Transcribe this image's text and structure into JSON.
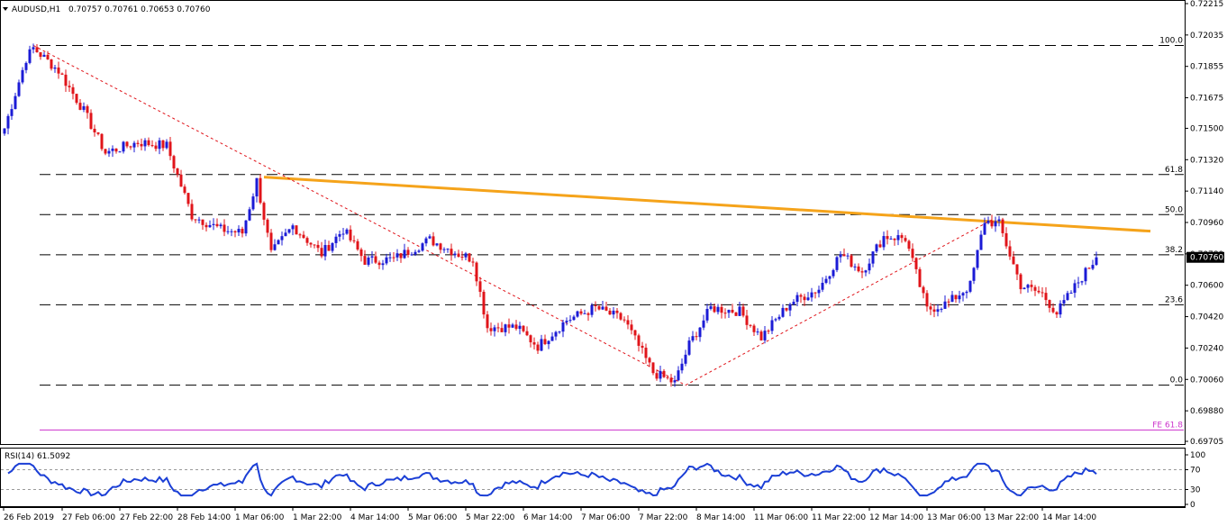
{
  "header": {
    "symbol": "AUDUSD,H1",
    "ohlc": "0.70757 0.70761 0.70653 0.70760"
  },
  "price_axis": {
    "ticks": [
      "0.72215",
      "0.72035",
      "0.71855",
      "0.71675",
      "0.71500",
      "0.71320",
      "0.71140",
      "0.70960",
      "0.70780",
      "0.70600",
      "0.70420",
      "0.70240",
      "0.70060",
      "0.69880",
      "0.69705"
    ],
    "current_price": "0.70760"
  },
  "fib_levels": [
    {
      "label": "100.0",
      "price": 0.71975
    },
    {
      "label": "61.8",
      "price": 0.71235
    },
    {
      "label": "50.0",
      "price": 0.71005
    },
    {
      "label": "38.2",
      "price": 0.70775
    },
    {
      "label": "23.6",
      "price": 0.70488
    },
    {
      "label": "0.0",
      "price": 0.70027
    }
  ],
  "fe_level": {
    "label": "FE 61.8",
    "price": 0.6977
  },
  "rsi": {
    "label": "RSI(14) 61.5092",
    "levels": [
      "70",
      "30"
    ],
    "scale_labels": [
      "100",
      "70",
      "30",
      "0"
    ]
  },
  "time_axis": [
    "26 Feb 2019",
    "27 Feb 06:00",
    "27 Feb 22:00",
    "28 Feb 14:00",
    "1 Mar 06:00",
    "1 Mar 22:00",
    "4 Mar 14:00",
    "5 Mar 06:00",
    "5 Mar 22:00",
    "6 Mar 14:00",
    "7 Mar 06:00",
    "7 Mar 22:00",
    "8 Mar 14:00",
    "11 Mar 06:00",
    "11 Mar 22:00",
    "12 Mar 14:00",
    "13 Mar 06:00",
    "13 Mar 22:00",
    "14 Mar 14:00"
  ],
  "colors": {
    "bull": "#1b1bd6",
    "bear": "#e0141a",
    "trendline": "#f5a31a",
    "fib": "#000000",
    "fe": "#cc33cc",
    "rsi": "#1b3fd6",
    "price_tag_bg": "#000000"
  },
  "chart_data": {
    "type": "candlestick",
    "instrument": "AUDUSD",
    "timeframe": "H1",
    "ylim": [
      0.69705,
      0.72215
    ],
    "path_points": [
      {
        "i": 0,
        "price": 0.715
      },
      {
        "i": 6,
        "price": 0.719
      },
      {
        "i": 8,
        "price": 0.7196
      },
      {
        "i": 15,
        "price": 0.7183
      },
      {
        "i": 22,
        "price": 0.716
      },
      {
        "i": 28,
        "price": 0.7136
      },
      {
        "i": 37,
        "price": 0.7142
      },
      {
        "i": 45,
        "price": 0.714
      },
      {
        "i": 52,
        "price": 0.71
      },
      {
        "i": 60,
        "price": 0.7092
      },
      {
        "i": 66,
        "price": 0.709
      },
      {
        "i": 70,
        "price": 0.712
      },
      {
        "i": 74,
        "price": 0.7078
      },
      {
        "i": 80,
        "price": 0.7094
      },
      {
        "i": 88,
        "price": 0.7078
      },
      {
        "i": 94,
        "price": 0.7092
      },
      {
        "i": 100,
        "price": 0.7074
      },
      {
        "i": 108,
        "price": 0.7075
      },
      {
        "i": 118,
        "price": 0.7086
      },
      {
        "i": 126,
        "price": 0.7078
      },
      {
        "i": 130,
        "price": 0.7075
      },
      {
        "i": 134,
        "price": 0.7036
      },
      {
        "i": 142,
        "price": 0.7036
      },
      {
        "i": 148,
        "price": 0.7025
      },
      {
        "i": 156,
        "price": 0.704
      },
      {
        "i": 164,
        "price": 0.7047
      },
      {
        "i": 172,
        "price": 0.704
      },
      {
        "i": 180,
        "price": 0.701
      },
      {
        "i": 186,
        "price": 0.7004
      },
      {
        "i": 190,
        "price": 0.7026
      },
      {
        "i": 196,
        "price": 0.7047
      },
      {
        "i": 204,
        "price": 0.7045
      },
      {
        "i": 210,
        "price": 0.703
      },
      {
        "i": 218,
        "price": 0.705
      },
      {
        "i": 226,
        "price": 0.7058
      },
      {
        "i": 232,
        "price": 0.7078
      },
      {
        "i": 238,
        "price": 0.7068
      },
      {
        "i": 244,
        "price": 0.7088
      },
      {
        "i": 250,
        "price": 0.7087
      },
      {
        "i": 256,
        "price": 0.7046
      },
      {
        "i": 262,
        "price": 0.705
      },
      {
        "i": 268,
        "price": 0.706
      },
      {
        "i": 272,
        "price": 0.7097
      },
      {
        "i": 276,
        "price": 0.7095
      },
      {
        "i": 282,
        "price": 0.706
      },
      {
        "i": 288,
        "price": 0.7055
      },
      {
        "i": 292,
        "price": 0.7044
      },
      {
        "i": 298,
        "price": 0.7062
      },
      {
        "i": 303,
        "price": 0.7076
      }
    ],
    "rsi_series": {
      "name": "RSI(14)",
      "last": 61.5092,
      "levels": [
        70,
        30
      ],
      "ylim": [
        0,
        100
      ]
    },
    "fibonacci_retracement": [
      {
        "level": "100.0",
        "price": 0.71975
      },
      {
        "level": "61.8",
        "price": 0.71235
      },
      {
        "level": "50.0",
        "price": 0.71005
      },
      {
        "level": "38.2",
        "price": 0.70775
      },
      {
        "level": "23.6",
        "price": 0.70488
      },
      {
        "level": "0.0",
        "price": 0.70027
      }
    ],
    "fibonacci_expansion": {
      "level": "FE 61.8",
      "price": 0.6977
    },
    "trendlines": [
      {
        "style": "orange solid resistance",
        "from": {
          "i": 72,
          "price": 0.7122
        },
        "to": {
          "i": 318,
          "price": 0.7091
        }
      },
      {
        "style": "red dotted",
        "from": {
          "i": 8,
          "price": 0.71975
        },
        "to": {
          "i": 189,
          "price": 0.70027
        }
      },
      {
        "style": "red dotted",
        "from": {
          "i": 189,
          "price": 0.70027
        },
        "to": {
          "i": 274,
          "price": 0.70975
        }
      }
    ],
    "current_price": 0.7076
  }
}
